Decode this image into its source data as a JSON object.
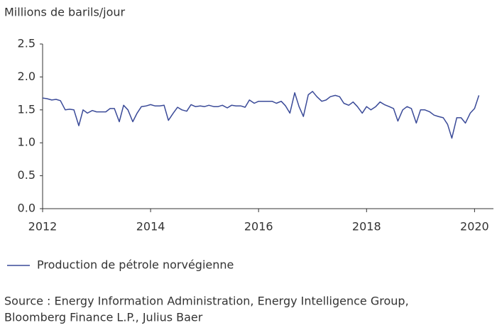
{
  "chart_data": {
    "type": "line",
    "y_axis_label": "Millions de barils/jour",
    "x": [
      2012,
      2012.08,
      2012.17,
      2012.25,
      2012.33,
      2012.42,
      2012.5,
      2012.58,
      2012.67,
      2012.75,
      2012.83,
      2012.92,
      2013,
      2013.08,
      2013.17,
      2013.25,
      2013.33,
      2013.42,
      2013.5,
      2013.58,
      2013.67,
      2013.75,
      2013.83,
      2013.92,
      2014,
      2014.08,
      2014.17,
      2014.25,
      2014.33,
      2014.42,
      2014.5,
      2014.58,
      2014.67,
      2014.75,
      2014.83,
      2014.92,
      2015,
      2015.08,
      2015.17,
      2015.25,
      2015.33,
      2015.42,
      2015.5,
      2015.58,
      2015.67,
      2015.75,
      2015.83,
      2015.92,
      2016,
      2016.08,
      2016.17,
      2016.25,
      2016.33,
      2016.42,
      2016.5,
      2016.58,
      2016.67,
      2016.75,
      2016.83,
      2016.92,
      2017,
      2017.08,
      2017.17,
      2017.25,
      2017.33,
      2017.42,
      2017.5,
      2017.58,
      2017.67,
      2017.75,
      2017.83,
      2017.92,
      2018,
      2018.08,
      2018.17,
      2018.25,
      2018.33,
      2018.42,
      2018.5,
      2018.58,
      2018.67,
      2018.75,
      2018.83,
      2018.92,
      2019,
      2019.08,
      2019.17,
      2019.25,
      2019.33,
      2019.42,
      2019.5,
      2019.58,
      2019.67,
      2019.75,
      2019.83,
      2019.92,
      2020,
      2020.08
    ],
    "series": [
      {
        "name": "Production de pétrole norvégienne",
        "color": "#3a4a98",
        "values": [
          1.68,
          1.67,
          1.65,
          1.66,
          1.64,
          1.5,
          1.51,
          1.5,
          1.26,
          1.5,
          1.45,
          1.49,
          1.47,
          1.47,
          1.47,
          1.52,
          1.52,
          1.32,
          1.57,
          1.5,
          1.32,
          1.45,
          1.55,
          1.56,
          1.58,
          1.56,
          1.56,
          1.57,
          1.34,
          1.45,
          1.54,
          1.5,
          1.48,
          1.58,
          1.55,
          1.56,
          1.55,
          1.57,
          1.55,
          1.55,
          1.57,
          1.53,
          1.57,
          1.56,
          1.56,
          1.54,
          1.65,
          1.6,
          1.63,
          1.63,
          1.63,
          1.63,
          1.6,
          1.63,
          1.56,
          1.45,
          1.76,
          1.55,
          1.4,
          1.73,
          1.78,
          1.7,
          1.63,
          1.65,
          1.7,
          1.72,
          1.7,
          1.6,
          1.57,
          1.62,
          1.55,
          1.45,
          1.55,
          1.5,
          1.55,
          1.62,
          1.58,
          1.55,
          1.52,
          1.33,
          1.5,
          1.55,
          1.52,
          1.3,
          1.5,
          1.5,
          1.47,
          1.42,
          1.4,
          1.38,
          1.28,
          1.07,
          1.38,
          1.38,
          1.3,
          1.45,
          1.52,
          1.72
        ]
      }
    ],
    "xlim": [
      2012,
      2020.35
    ],
    "xticks": [
      2012,
      2014,
      2016,
      2018,
      2020
    ],
    "ylim": [
      0,
      2.5
    ],
    "yticks": [
      {
        "value": 0,
        "label": "0.0"
      },
      0.5,
      {
        "value": 1,
        "label": "1.0"
      },
      1.5,
      {
        "value": 2,
        "label": "2.0"
      },
      2.5
    ],
    "grid": false,
    "legend": "bottom-left",
    "source": [
      "Source : Energy Information Administration, Energy Intelligence Group,",
      "Bloomberg Finance L.P., Julius Baer"
    ]
  }
}
